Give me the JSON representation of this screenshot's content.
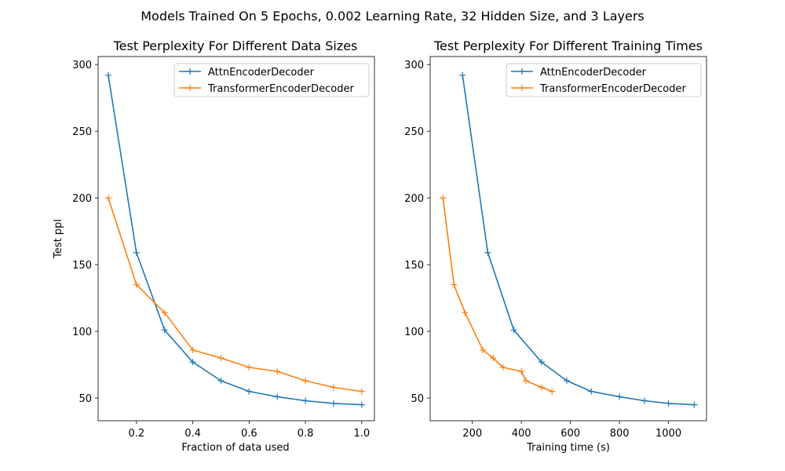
{
  "figure": {
    "suptitle": "Models Trained On 5 Epochs, 0.002 Learning Rate, 32 Hidden Size, and 3 Layers"
  },
  "chart_data": [
    {
      "type": "line",
      "title": "Test Perplexity For Different Data Sizes",
      "xlabel": "Fraction of data used",
      "ylabel": "Test ppl",
      "xlim": [
        0.064,
        1.045
      ],
      "ylim": [
        33,
        306
      ],
      "xticks": [
        0.2,
        0.4,
        0.6,
        0.8,
        1.0
      ],
      "xtick_labels": [
        "0.2",
        "0.4",
        "0.6",
        "0.8",
        "1.0"
      ],
      "yticks": [
        50,
        100,
        150,
        200,
        250,
        300
      ],
      "ytick_labels": [
        "50",
        "100",
        "150",
        "200",
        "250",
        "300"
      ],
      "grid": false,
      "legend": "upper right",
      "marker": "+",
      "series": [
        {
          "name": "AttnEncoderDecoder",
          "color": "#1f77b4",
          "x": [
            0.1,
            0.2,
            0.3,
            0.4,
            0.5,
            0.6,
            0.7,
            0.8,
            0.9,
            1.0
          ],
          "y": [
            292,
            159,
            101,
            77,
            63,
            55,
            51,
            48,
            46,
            45
          ]
        },
        {
          "name": "TransformerEncoderDecoder",
          "color": "#ff7f0e",
          "x": [
            0.1,
            0.2,
            0.3,
            0.4,
            0.5,
            0.6,
            0.7,
            0.8,
            0.9,
            1.0
          ],
          "y": [
            200,
            135,
            114,
            86,
            80,
            73,
            70,
            63,
            58,
            55
          ]
        }
      ]
    },
    {
      "type": "line",
      "title": "Test Perplexity For Different Training Times",
      "xlabel": "Training time (s)",
      "ylabel": "",
      "xlim": [
        28,
        1155
      ],
      "ylim": [
        33,
        306
      ],
      "xticks": [
        200,
        400,
        600,
        800,
        1000
      ],
      "xtick_labels": [
        "200",
        "400",
        "600",
        "800",
        "1000"
      ],
      "yticks": [
        50,
        100,
        150,
        200,
        250,
        300
      ],
      "ytick_labels": [
        "50",
        "100",
        "150",
        "200",
        "250",
        "300"
      ],
      "grid": false,
      "legend": "upper right",
      "marker": "+",
      "series": [
        {
          "name": "AttnEncoderDecoder",
          "color": "#1f77b4",
          "x": [
            160,
            263,
            369,
            482,
            585,
            685,
            800,
            902,
            1000,
            1105
          ],
          "y": [
            292,
            159,
            101,
            77,
            63,
            55,
            51,
            48,
            46,
            45
          ]
        },
        {
          "name": "TransformerEncoderDecoder",
          "color": "#ff7f0e",
          "x": [
            80,
            125,
            170,
            243,
            285,
            325,
            400,
            418,
            483,
            525
          ],
          "y": [
            200,
            135,
            114,
            86,
            80,
            73,
            70,
            63,
            58,
            55
          ]
        }
      ]
    }
  ]
}
